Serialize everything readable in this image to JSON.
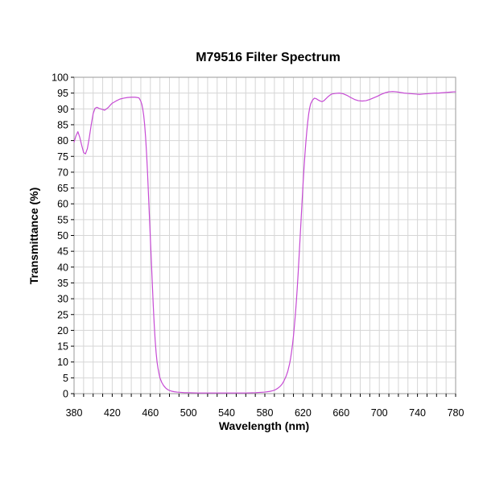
{
  "chart_data": {
    "type": "line",
    "title": "M79516 Filter Spectrum",
    "xlabel": "Wavelength (nm)",
    "ylabel": "Transmittance (%)",
    "xlim": [
      380,
      780
    ],
    "ylim": [
      0,
      100
    ],
    "x_ticks": [
      380,
      420,
      460,
      500,
      540,
      580,
      620,
      660,
      700,
      740,
      780
    ],
    "x_tick_labels": [
      "380",
      "420",
      "460",
      "500",
      "540",
      "580",
      "620",
      "660",
      "700",
      "740",
      "780"
    ],
    "y_ticks": [
      0,
      5,
      10,
      15,
      20,
      25,
      30,
      35,
      40,
      45,
      50,
      55,
      60,
      65,
      70,
      75,
      80,
      85,
      90,
      95,
      100
    ],
    "y_tick_labels": [
      "0",
      "5",
      "10",
      "15",
      "20",
      "25",
      "30",
      "35",
      "40",
      "45",
      "50",
      "55",
      "60",
      "65",
      "70",
      "75",
      "80",
      "85",
      "90",
      "95",
      "100"
    ],
    "x_minor_step": 10,
    "grid": true,
    "legend": "none",
    "series_color": "#c64bd4",
    "series": [
      {
        "x": [
          380,
          382,
          384,
          386,
          388,
          390,
          392,
          394,
          396,
          398,
          400,
          402,
          404,
          406,
          408,
          410,
          412,
          414,
          416,
          418,
          420,
          424,
          428,
          432,
          436,
          440,
          444,
          446,
          448,
          449,
          450,
          451,
          452,
          453,
          454,
          455,
          456,
          457,
          458,
          459,
          460,
          461,
          462,
          463,
          464,
          465,
          466,
          467,
          468,
          469,
          470,
          472,
          474,
          476,
          478,
          480,
          482,
          485,
          488,
          492,
          496,
          500,
          510,
          520,
          530,
          540,
          550,
          560,
          570,
          580,
          585,
          588,
          590,
          592,
          594,
          596,
          598,
          600,
          602,
          604,
          606,
          607,
          608,
          609,
          610,
          611,
          612,
          613,
          614,
          615,
          616,
          617,
          618,
          619,
          620,
          621,
          622,
          623,
          624,
          625,
          626,
          627,
          628,
          630,
          632,
          634,
          636,
          638,
          640,
          642,
          644,
          646,
          648,
          650,
          654,
          658,
          662,
          666,
          670,
          674,
          678,
          682,
          686,
          690,
          694,
          698,
          702,
          706,
          710,
          714,
          718,
          722,
          726,
          730,
          734,
          738,
          742,
          746,
          750,
          754,
          758,
          762,
          766,
          770,
          774,
          778,
          780
        ],
        "y": [
          79.5,
          81.5,
          82.8,
          81.0,
          78.5,
          76.2,
          75.8,
          77.5,
          81.0,
          85.0,
          88.5,
          90.2,
          90.5,
          90.2,
          90.0,
          89.8,
          89.6,
          90.0,
          90.5,
          91.2,
          91.8,
          92.5,
          93.1,
          93.4,
          93.6,
          93.7,
          93.7,
          93.6,
          93.5,
          93.0,
          92.4,
          91.5,
          90.0,
          88.0,
          85.0,
          81.0,
          76.0,
          70.0,
          63.0,
          56.0,
          49.0,
          42.0,
          35.0,
          28.0,
          22.0,
          17.0,
          13.0,
          10.0,
          8.0,
          6.4,
          5.0,
          3.5,
          2.5,
          1.8,
          1.3,
          1.0,
          0.8,
          0.6,
          0.5,
          0.4,
          0.3,
          0.3,
          0.2,
          0.2,
          0.2,
          0.2,
          0.2,
          0.2,
          0.3,
          0.5,
          0.7,
          0.9,
          1.1,
          1.4,
          1.8,
          2.3,
          3.0,
          4.0,
          5.3,
          7.0,
          9.5,
          11.2,
          13.2,
          15.5,
          18.2,
          21.5,
          25.0,
          29.0,
          33.5,
          38.5,
          44.0,
          49.5,
          55.0,
          60.5,
          66.0,
          71.0,
          75.5,
          79.5,
          83.0,
          86.0,
          88.5,
          90.3,
          91.6,
          92.8,
          93.4,
          93.2,
          92.8,
          92.5,
          92.3,
          92.6,
          93.2,
          93.8,
          94.3,
          94.7,
          94.9,
          95.0,
          94.8,
          94.3,
          93.6,
          93.0,
          92.6,
          92.5,
          92.6,
          93.0,
          93.5,
          94.0,
          94.6,
          95.1,
          95.4,
          95.5,
          95.4,
          95.2,
          95.0,
          94.9,
          94.8,
          94.7,
          94.6,
          94.7,
          94.8,
          94.9,
          95.0,
          95.0,
          95.1,
          95.2,
          95.3,
          95.4,
          95.4
        ]
      }
    ]
  }
}
